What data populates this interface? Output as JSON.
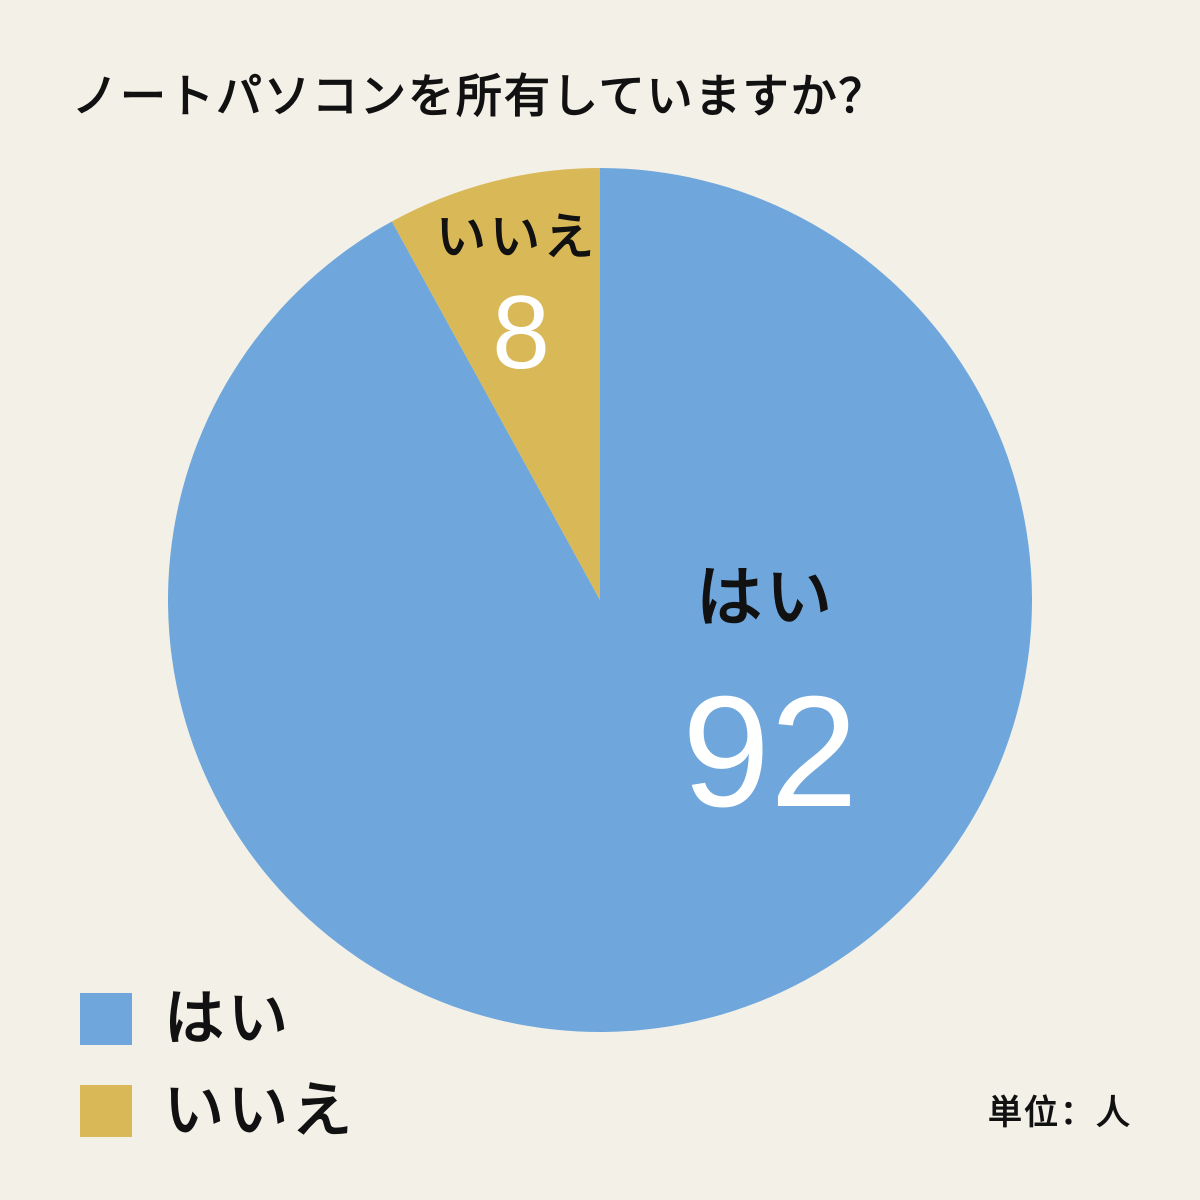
{
  "title": "ノートパソコンを所有していますか？",
  "unit_note": "単位：人",
  "colors": {
    "background": "#F3F0E8",
    "yes": "#6FA7DC",
    "no": "#D9B857",
    "text": "#111111",
    "value_text": "#FFFFFF"
  },
  "chart_data": {
    "type": "pie",
    "title": "ノートパソコンを所有していますか？",
    "categories": [
      "はい",
      "いいえ"
    ],
    "values": [
      92,
      8
    ],
    "colors": [
      "#6FA7DC",
      "#D9B857"
    ],
    "total": 100,
    "unit": "人",
    "start_angle_deg": -90,
    "direction": "clockwise",
    "legend_position": "bottom-left",
    "data_labels": [
      {
        "category": "はい",
        "value": 92
      },
      {
        "category": "いいえ",
        "value": 8
      }
    ]
  },
  "slice_labels": {
    "yes_label": "はい",
    "yes_value": "92",
    "no_label": "いいえ",
    "no_value": "8"
  },
  "legend": {
    "items": [
      {
        "label": "はい",
        "color": "#6FA7DC"
      },
      {
        "label": "いいえ",
        "color": "#D9B857"
      }
    ]
  }
}
